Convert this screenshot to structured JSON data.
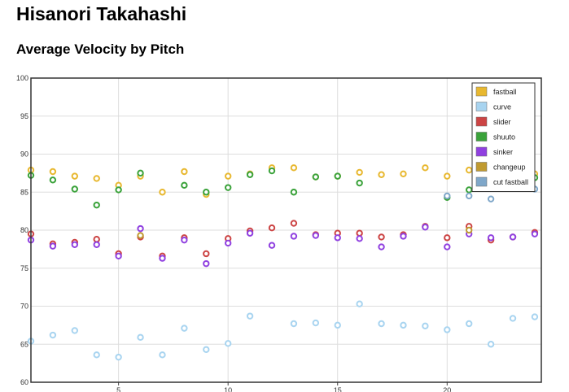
{
  "page": {
    "title": "Hisanori Takahashi"
  },
  "chart_data": {
    "type": "scatter",
    "title": "Average Velocity by Pitch",
    "xlabel": "",
    "ylabel": "",
    "xlim": [
      1,
      24.3
    ],
    "ylim": [
      60,
      100
    ],
    "x_ticks": [
      5,
      10,
      15,
      20
    ],
    "y_ticks": [
      60,
      65,
      70,
      75,
      80,
      85,
      90,
      95,
      100
    ],
    "grid": true,
    "legend_position": "top-right",
    "series": [
      {
        "name": "fastball",
        "color": "#e8b830",
        "x": [
          1,
          2,
          3,
          4,
          5,
          6,
          7,
          8,
          9,
          10,
          11,
          12,
          13,
          14,
          15,
          16,
          17,
          18,
          19,
          20,
          21,
          22,
          23,
          24
        ],
        "y": [
          87.9,
          87.7,
          87.1,
          86.8,
          85.9,
          87.1,
          85.0,
          87.7,
          84.7,
          87.1,
          87.4,
          88.2,
          88.2,
          87.0,
          87.1,
          87.6,
          87.3,
          87.4,
          88.2,
          87.1,
          87.9,
          86.6,
          86.7,
          87.4
        ]
      },
      {
        "name": "curve",
        "color": "#a8d4f0",
        "x": [
          1,
          2,
          3,
          4,
          5,
          6,
          7,
          8,
          9,
          10,
          11,
          12,
          13,
          14,
          15,
          16,
          17,
          18,
          19,
          20,
          21,
          22,
          23,
          24
        ],
        "y": [
          65.4,
          66.2,
          66.8,
          63.6,
          63.3,
          65.9,
          63.6,
          67.1,
          64.3,
          65.1,
          68.7,
          null,
          67.7,
          67.8,
          67.5,
          70.3,
          67.7,
          67.5,
          67.4,
          66.9,
          67.7,
          65.0,
          68.4,
          68.6
        ]
      },
      {
        "name": "slider",
        "color": "#cc4444",
        "x": [
          1,
          2,
          3,
          4,
          5,
          6,
          7,
          8,
          9,
          10,
          11,
          12,
          13,
          14,
          15,
          16,
          17,
          18,
          19,
          20,
          21,
          22,
          23,
          24
        ],
        "y": [
          79.5,
          78.2,
          78.4,
          78.8,
          76.9,
          79.1,
          76.6,
          79.0,
          76.9,
          78.9,
          79.9,
          80.3,
          80.9,
          79.4,
          79.6,
          79.6,
          79.1,
          79.4,
          80.5,
          79.0,
          80.5,
          78.7,
          79.1,
          79.7
        ]
      },
      {
        "name": "shuuto",
        "color": "#3aa23a",
        "x": [
          1,
          2,
          3,
          4,
          5,
          6,
          7,
          8,
          9,
          10,
          11,
          12,
          13,
          14,
          15,
          16,
          17,
          18,
          19,
          20,
          21,
          22,
          23,
          24
        ],
        "y": [
          87.2,
          86.6,
          85.4,
          83.3,
          85.3,
          87.5,
          null,
          85.9,
          85.0,
          85.6,
          87.3,
          87.8,
          85.0,
          87.0,
          87.1,
          86.2,
          null,
          null,
          null,
          84.3,
          85.3,
          85.5,
          85.5,
          86.9
        ]
      },
      {
        "name": "sinker",
        "color": "#9040e0",
        "x": [
          1,
          2,
          3,
          4,
          5,
          6,
          7,
          8,
          9,
          10,
          11,
          12,
          13,
          14,
          15,
          16,
          17,
          18,
          19,
          20,
          21,
          22,
          23,
          24
        ],
        "y": [
          78.7,
          77.9,
          78.1,
          78.1,
          76.6,
          80.2,
          76.3,
          78.7,
          75.6,
          78.3,
          79.6,
          78.0,
          79.2,
          79.3,
          79.0,
          78.9,
          77.8,
          79.2,
          80.4,
          77.8,
          79.5,
          79.0,
          79.1,
          79.5
        ]
      },
      {
        "name": "changeup",
        "color": "#c09a30",
        "x": [
          1,
          2,
          3,
          4,
          5,
          6,
          7,
          8,
          9,
          10,
          11,
          12,
          13,
          14,
          15,
          16,
          17,
          18,
          19,
          20,
          21,
          22,
          23,
          24
        ],
        "y": [
          null,
          null,
          null,
          null,
          null,
          79.3,
          null,
          null,
          null,
          null,
          null,
          null,
          null,
          null,
          null,
          null,
          null,
          null,
          null,
          null,
          80.0,
          null,
          null,
          null
        ]
      },
      {
        "name": "cut fastball",
        "color": "#7fa7c9",
        "x": [
          1,
          2,
          3,
          4,
          5,
          6,
          7,
          8,
          9,
          10,
          11,
          12,
          13,
          14,
          15,
          16,
          17,
          18,
          19,
          20,
          21,
          22,
          23,
          24
        ],
        "y": [
          null,
          null,
          null,
          null,
          null,
          null,
          null,
          null,
          null,
          null,
          null,
          null,
          null,
          null,
          null,
          null,
          null,
          null,
          null,
          84.5,
          84.5,
          84.1,
          null,
          85.4
        ]
      }
    ]
  }
}
